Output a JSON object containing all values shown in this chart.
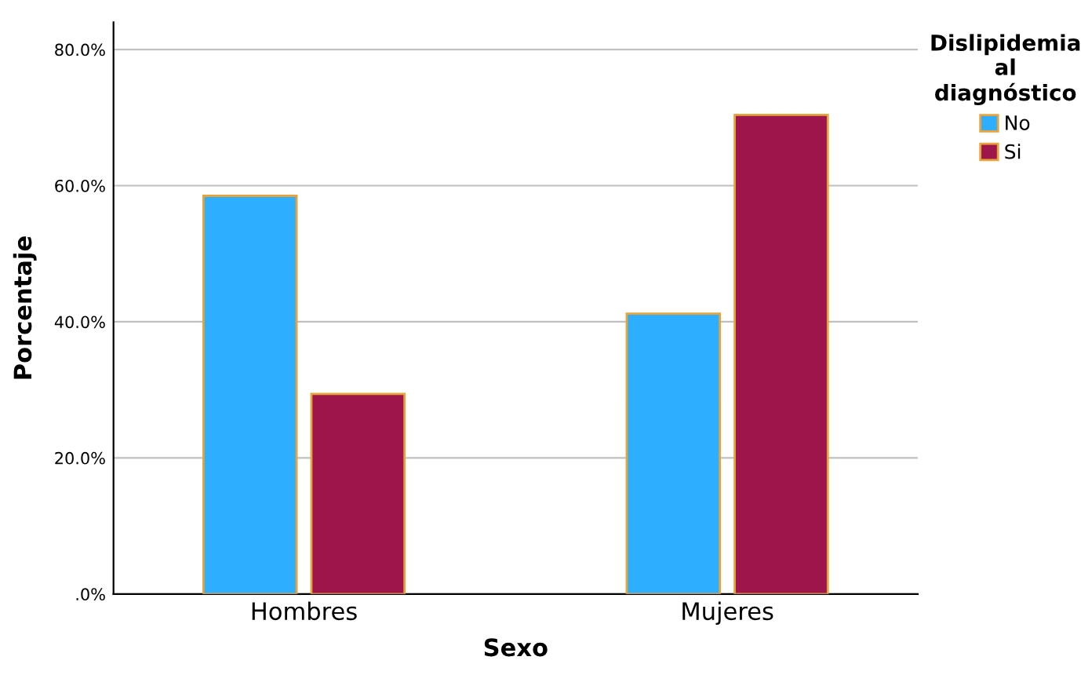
{
  "chart_data": {
    "type": "bar",
    "xlabel": "Sexo",
    "ylabel": "Porcentaje",
    "legend_title": "Dislipidemia\nal\ndiagnóstico",
    "categories": [
      "Hombres",
      "Mujeres"
    ],
    "series": [
      {
        "name": "No",
        "color": "#2eaefe",
        "values": [
          58.5,
          41.2
        ]
      },
      {
        "name": "Si",
        "color": "#9e154c",
        "values": [
          29.4,
          70.4
        ]
      }
    ],
    "ylim": [
      0,
      84
    ],
    "yticks": [
      {
        "value": 0,
        "label": ".0%"
      },
      {
        "value": 20,
        "label": "20.0%"
      },
      {
        "value": 40,
        "label": "40.0%"
      },
      {
        "value": 60,
        "label": "60.0%"
      },
      {
        "value": 80,
        "label": "80.0%"
      }
    ],
    "grid": "y",
    "legend": "top right"
  }
}
